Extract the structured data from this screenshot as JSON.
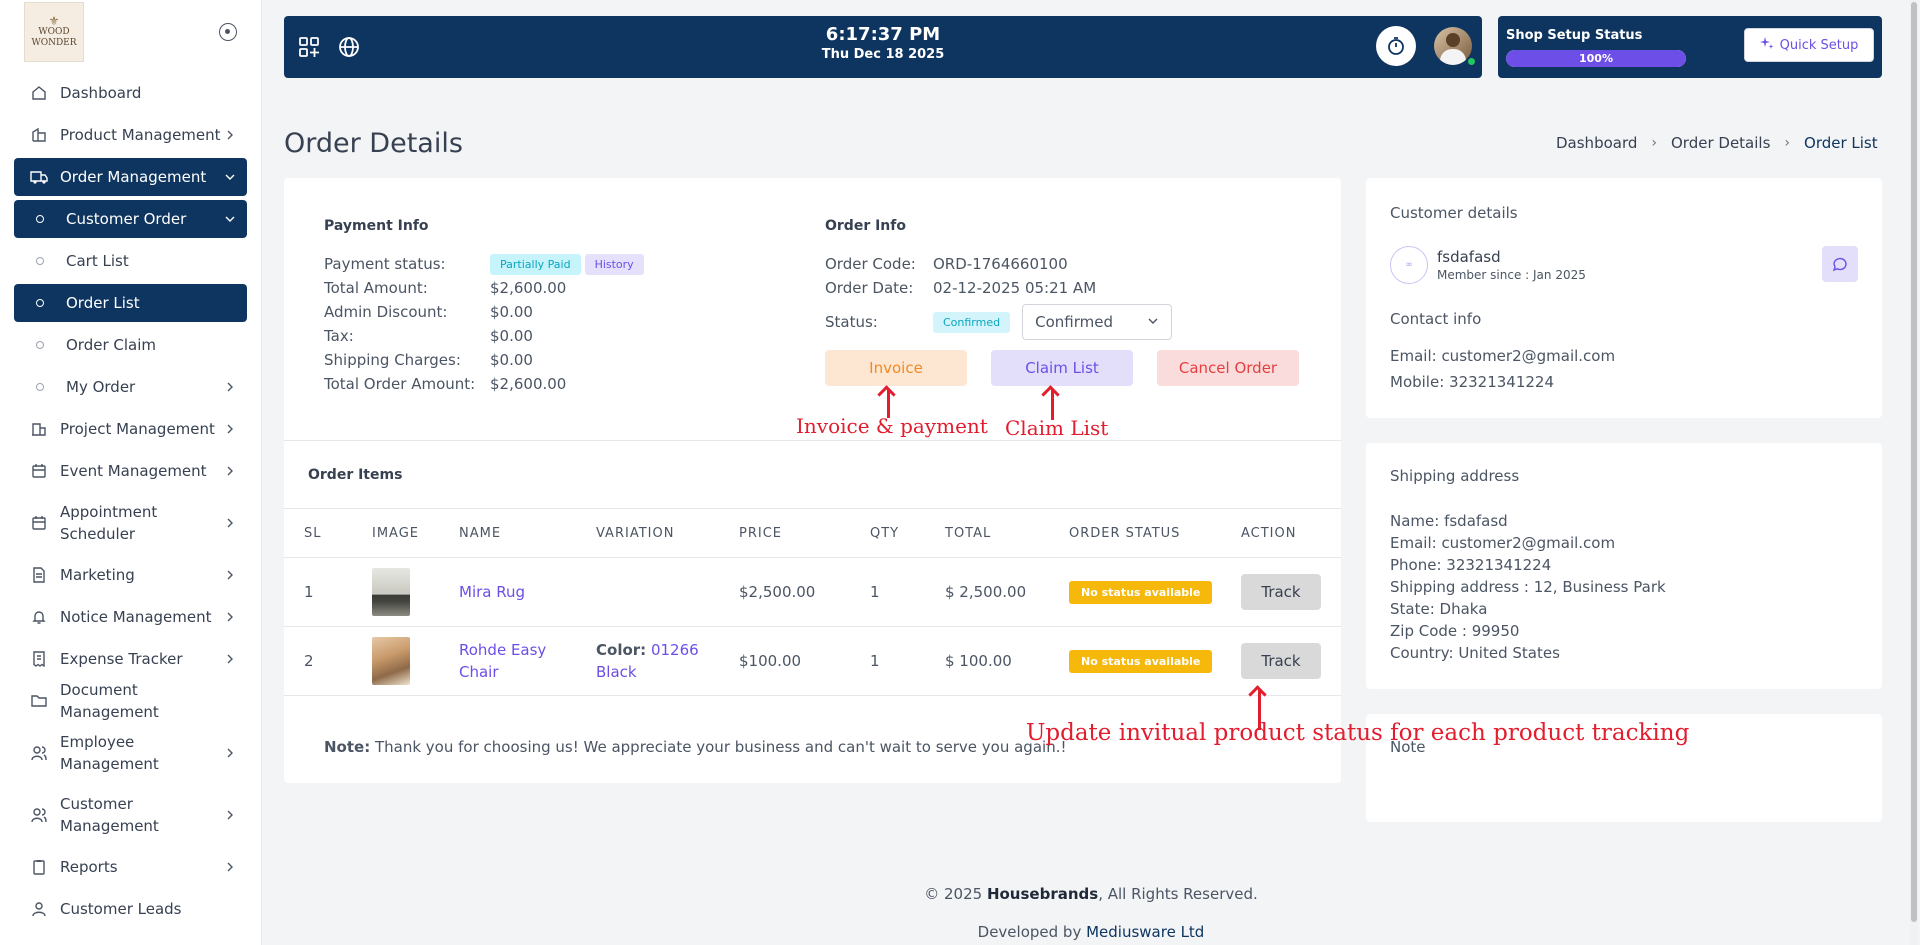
{
  "brand": {
    "logo_text_1": "WOOD",
    "logo_text_2": "WONDER"
  },
  "sidebar": {
    "items": [
      {
        "label": "Dashboard"
      },
      {
        "label": "Product Management"
      },
      {
        "label": "Order Management"
      },
      {
        "label": "Customer Order"
      },
      {
        "label": "Cart List"
      },
      {
        "label": "Order List"
      },
      {
        "label": "Order Claim"
      },
      {
        "label": "My Order"
      },
      {
        "label": "Project Management"
      },
      {
        "label": "Event Management"
      },
      {
        "label": "Appointment Scheduler"
      },
      {
        "label": "Marketing"
      },
      {
        "label": "Notice Management"
      },
      {
        "label": "Expense Tracker"
      },
      {
        "label": "Document Management"
      },
      {
        "label": "Employee Management"
      },
      {
        "label": "Customer Management"
      },
      {
        "label": "Reports"
      },
      {
        "label": "Customer Leads"
      }
    ]
  },
  "topbar": {
    "time": "6:17:37 PM",
    "date": "Thu Dec 18 2025"
  },
  "setup": {
    "title": "Shop Setup Status",
    "progress_label": "100%",
    "progress": 1.0,
    "quick_setup": "Quick Setup"
  },
  "page": {
    "title": "Order Details",
    "breadcrumb": [
      "Dashboard",
      "Order Details",
      "Order List"
    ]
  },
  "payment": {
    "title": "Payment Info",
    "status_label": "Payment status:",
    "status_badge": "Partially Paid",
    "history_badge": "History",
    "rows": [
      {
        "k": "Total Amount:",
        "v": "$2,600.00"
      },
      {
        "k": "Admin Discount:",
        "v": "$0.00"
      },
      {
        "k": "Tax:",
        "v": "$0.00"
      },
      {
        "k": "Shipping Charges:",
        "v": "$0.00"
      },
      {
        "k": "Total Order Amount:",
        "v": "$2,600.00"
      }
    ]
  },
  "order_info": {
    "title": "Order Info",
    "code_label": "Order Code:",
    "code": "ORD-1764660100",
    "date_label": "Order Date:",
    "date": "02-12-2025 05:21 AM",
    "status_label": "Status:",
    "status_badge": "Confirmed",
    "status_select": "Confirmed",
    "buttons": {
      "invoice": "Invoice",
      "claim": "Claim List",
      "cancel": "Cancel Order"
    }
  },
  "annotations": {
    "invoice": "Invoice & payment",
    "claim": "Claim List",
    "track": "Update invitual product status for  each product tracking"
  },
  "items": {
    "title": "Order Items",
    "headers": [
      "SL",
      "IMAGE",
      "NAME",
      "VARIATION",
      "PRICE",
      "QTY",
      "TOTAL",
      "ORDER STATUS",
      "ACTION"
    ],
    "rows": [
      {
        "sl": "1",
        "name": "Mira Rug",
        "var_key": "",
        "var_val": "",
        "price": "$2,500.00",
        "qty": "1",
        "total": "$ 2,500.00",
        "status": "No status available",
        "action": "Track"
      },
      {
        "sl": "2",
        "name": "Rohde Easy Chair",
        "var_key": "Color:",
        "var_val": "01266 Black",
        "price": "$100.00",
        "qty": "1",
        "total": "$ 100.00",
        "status": "No status available",
        "action": "Track"
      }
    ],
    "note_label": "Note:",
    "note_text": "Thank you for choosing us! We appreciate your business and can't wait to serve you again.!"
  },
  "customer": {
    "title": "Customer details",
    "name": "fsdafasd",
    "since": "Member since : Jan 2025",
    "contact_title": "Contact info",
    "email": "Email: customer2@gmail.com",
    "mobile": "Mobile: 32321341224"
  },
  "shipping": {
    "title": "Shipping address",
    "lines": [
      "Name: fsdafasd",
      "Email: customer2@gmail.com",
      "Phone: 32321341224",
      "Shipping address : 12, Business Park",
      "State: Dhaka",
      "Zip Code : 99950",
      "Country: United States"
    ]
  },
  "note_card": {
    "title": "Note"
  },
  "footer": {
    "copyright_pre": "© 2025 ",
    "brand": "Housebrands",
    "copyright_post": ", All Rights Reserved.",
    "dev_pre": "Developed by ",
    "dev": "Mediusware Ltd"
  },
  "colors": {
    "primary": "#0e3460",
    "accent": "#6d4ee6",
    "annotation": "#e11d2e",
    "warning": "#f6b80a"
  }
}
